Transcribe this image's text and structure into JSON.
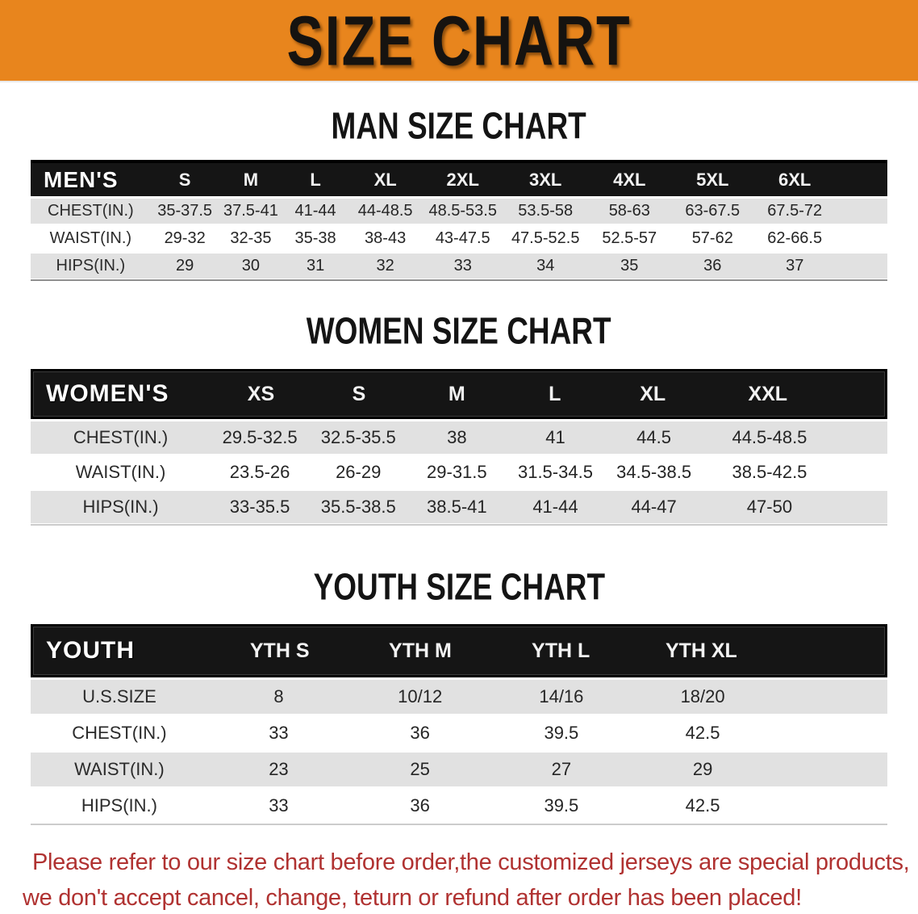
{
  "banner": {
    "title": "SIZE CHART",
    "bg_color": "#E8851D",
    "text_color": "#161310"
  },
  "colors": {
    "table_header_bg": "#151515",
    "row_gray": "#e1e1e1",
    "row_white": "#ffffff",
    "footer_red": "#B03231"
  },
  "sections": [
    {
      "heading": "MAN SIZE CHART",
      "table": {
        "header_label": "MEN'S",
        "columns": [
          "S",
          "M",
          "L",
          "XL",
          "2XL",
          "3XL",
          "4XL",
          "5XL",
          "6XL"
        ],
        "rows": [
          {
            "label": "CHEST(IN.)",
            "values": [
              "35-37.5",
              "37.5-41",
              "41-44",
              "44-48.5",
              "48.5-53.5",
              "53.5-58",
              "58-63",
              "63-67.5",
              "67.5-72"
            ]
          },
          {
            "label": "WAIST(IN.)",
            "values": [
              "29-32",
              "32-35",
              "35-38",
              "38-43",
              "43-47.5",
              "47.5-52.5",
              "52.5-57",
              "57-62",
              "62-66.5"
            ]
          },
          {
            "label": "HIPS(IN.)",
            "values": [
              "29",
              "30",
              "31",
              "32",
              "33",
              "34",
              "35",
              "36",
              "37"
            ]
          }
        ]
      }
    },
    {
      "heading": "WOMEN SIZE CHART",
      "table": {
        "header_label": "WOMEN'S",
        "columns": [
          "XS",
          "S",
          "M",
          "L",
          "XL",
          "XXL"
        ],
        "rows": [
          {
            "label": "CHEST(IN.)",
            "values": [
              "29.5-32.5",
              "32.5-35.5",
              "38",
              "41",
              "44.5",
              "44.5-48.5"
            ]
          },
          {
            "label": "WAIST(IN.)",
            "values": [
              "23.5-26",
              "26-29",
              "29-31.5",
              "31.5-34.5",
              "34.5-38.5",
              "38.5-42.5"
            ]
          },
          {
            "label": "HIPS(IN.)",
            "values": [
              "33-35.5",
              "35.5-38.5",
              "38.5-41",
              "41-44",
              "44-47",
              "47-50"
            ]
          }
        ]
      }
    },
    {
      "heading": "YOUTH SIZE CHART",
      "table": {
        "header_label": "YOUTH",
        "columns": [
          "YTH S",
          "YTH M",
          "YTH L",
          "YTH XL"
        ],
        "rows": [
          {
            "label": "U.S.SIZE",
            "values": [
              "8",
              "10/12",
              "14/16",
              "18/20"
            ]
          },
          {
            "label": "CHEST(IN.)",
            "values": [
              "33",
              "36",
              "39.5",
              "42.5"
            ]
          },
          {
            "label": "WAIST(IN.)",
            "values": [
              "23",
              "25",
              "27",
              "29"
            ]
          },
          {
            "label": "HIPS(IN.)",
            "values": [
              "33",
              "36",
              "39.5",
              "42.5"
            ]
          }
        ]
      }
    }
  ],
  "footer": {
    "line1": "Please refer to our size chart before order,the customized jerseys are special products,",
    "line2": "we don't accept cancel, change, teturn or refund after order has been placed!"
  }
}
